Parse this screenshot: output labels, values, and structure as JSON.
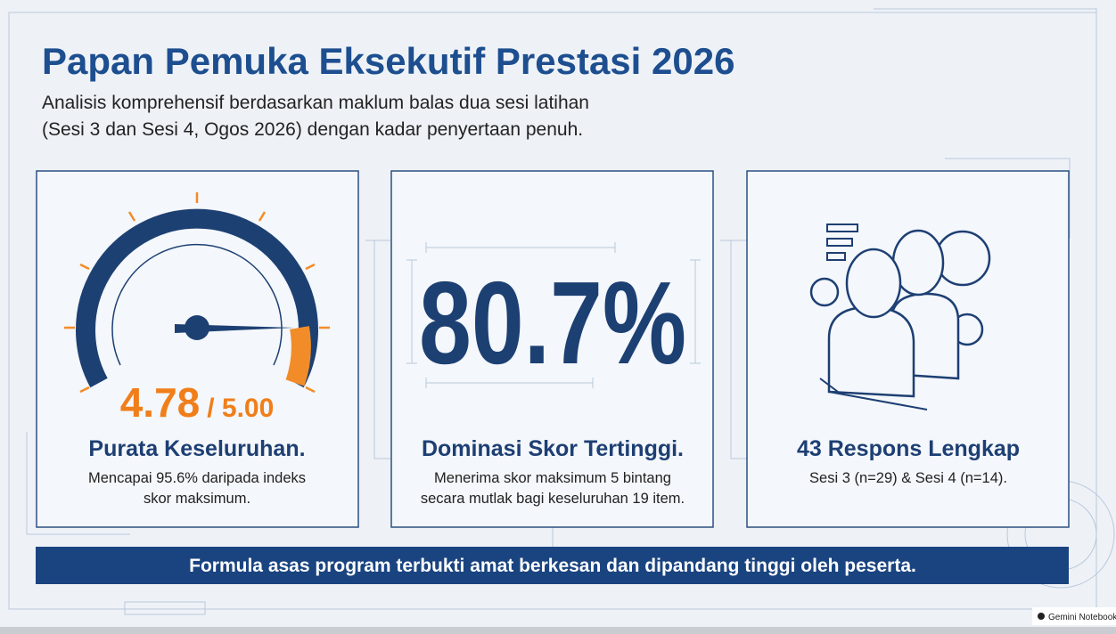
{
  "header": {
    "title": "Papan Pemuka Eksekutif Prestasi 2026",
    "subtitle": [
      "Analisis komprehensif berdasarkan maklum balas dua sesi latihan",
      "(Sesi 3 dan Sesi 4, Ogos 2026) dengan kadar penyertaan penuh."
    ]
  },
  "cards": [
    {
      "metric": "4.78",
      "metric_suffix": "/ 5.00",
      "heading": "Purata Keseluruhan.",
      "text": [
        "Mencapai 95.6% daripada indeks",
        "skor maksimum."
      ]
    },
    {
      "metric": "80.7%",
      "heading": "Dominasi Skor Tertinggi.",
      "text": [
        "Menerima skor maksimum 5 bintang",
        "secara mutlak bagi keseluruhan 19 item."
      ]
    },
    {
      "heading": "43 Respons Lengkap",
      "text": [
        "Sesi 3 (n=29) & Sesi 4 (n=14)."
      ]
    }
  ],
  "banner": "Formula asas program terbukti amat berkesan dan dipandang tinggi oleh peserta.",
  "watermark": "Gemini Notebook"
}
